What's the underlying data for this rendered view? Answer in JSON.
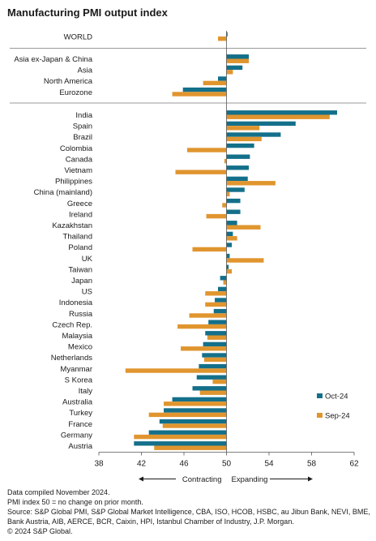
{
  "chart_data": {
    "type": "bar",
    "orientation": "horizontal",
    "title": "Manufacturing PMI output index",
    "xlim": [
      38,
      62
    ],
    "xticks": [
      38,
      42,
      46,
      50,
      54,
      58,
      62
    ],
    "baseline": 50,
    "series": [
      {
        "name": "Oct-24",
        "color": "#14708a"
      },
      {
        "name": "Sep-24",
        "color": "#e0952e"
      }
    ],
    "groups": [
      {
        "categories": [
          {
            "label": "WORLD",
            "oct": 50.1,
            "sep": 49.2
          }
        ]
      },
      {
        "categories": [
          {
            "label": "Asia ex-Japan & China",
            "oct": 52.1,
            "sep": 52.1
          },
          {
            "label": "Asia",
            "oct": 51.5,
            "sep": 50.6
          },
          {
            "label": "North America",
            "oct": 49.2,
            "sep": 47.8
          },
          {
            "label": "Eurozone",
            "oct": 45.9,
            "sep": 44.9
          }
        ]
      },
      {
        "categories": [
          {
            "label": "India",
            "oct": 60.4,
            "sep": 59.7
          },
          {
            "label": "Spain",
            "oct": 56.5,
            "sep": 53.1
          },
          {
            "label": "Brazil",
            "oct": 55.1,
            "sep": 53.3
          },
          {
            "label": "Colombia",
            "oct": 52.6,
            "sep": 46.3
          },
          {
            "label": "Canada",
            "oct": 52.2,
            "sep": 49.8
          },
          {
            "label": "Vietnam",
            "oct": 52.1,
            "sep": 45.2
          },
          {
            "label": "Philippines",
            "oct": 52.0,
            "sep": 54.6
          },
          {
            "label": "China (mainland)",
            "oct": 51.7,
            "sep": 50.3
          },
          {
            "label": "Greece",
            "oct": 51.3,
            "sep": 49.6
          },
          {
            "label": "Ireland",
            "oct": 51.3,
            "sep": 48.1
          },
          {
            "label": "Kazakhstan",
            "oct": 51.0,
            "sep": 53.2
          },
          {
            "label": "Thailand",
            "oct": 50.6,
            "sep": 51.0
          },
          {
            "label": "Poland",
            "oct": 50.5,
            "sep": 46.8
          },
          {
            "label": "UK",
            "oct": 50.3,
            "sep": 53.5
          },
          {
            "label": "Taiwan",
            "oct": 50.2,
            "sep": 50.5
          },
          {
            "label": "Japan",
            "oct": 49.4,
            "sep": 49.7
          },
          {
            "label": "US",
            "oct": 49.2,
            "sep": 48.0
          },
          {
            "label": "Indonesia",
            "oct": 48.9,
            "sep": 48.0
          },
          {
            "label": "Russia",
            "oct": 48.8,
            "sep": 46.5
          },
          {
            "label": "Czech Rep.",
            "oct": 48.3,
            "sep": 45.4
          },
          {
            "label": "Malaysia",
            "oct": 48.0,
            "sep": 48.2
          },
          {
            "label": "Mexico",
            "oct": 47.8,
            "sep": 45.7
          },
          {
            "label": "Netherlands",
            "oct": 47.7,
            "sep": 47.9
          },
          {
            "label": "Myanmar",
            "oct": 47.4,
            "sep": 40.5
          },
          {
            "label": "S Korea",
            "oct": 47.2,
            "sep": 48.7
          },
          {
            "label": "Italy",
            "oct": 46.8,
            "sep": 47.5
          },
          {
            "label": "Australia",
            "oct": 44.9,
            "sep": 44.1
          },
          {
            "label": "Turkey",
            "oct": 44.1,
            "sep": 42.7
          },
          {
            "label": "France",
            "oct": 43.7,
            "sep": 44.0
          },
          {
            "label": "Germany",
            "oct": 42.7,
            "sep": 41.3
          },
          {
            "label": "Austria",
            "oct": 41.3,
            "sep": 43.2
          }
        ]
      }
    ],
    "legend": {
      "position": "right"
    },
    "annotations": {
      "contracting": "Contracting",
      "expanding": "Expanding"
    }
  },
  "footer": {
    "notes": [
      "Data compiled November 2024.",
      "PMI index 50 = no change on prior month."
    ],
    "source": "Source: S&P Global PMI, S&P Global Market Intelligence, CBA, ISO, HCOB, HSBC, au Jibun Bank, NEVI, BME, Bank Austria, AIB, AERCE, BCR, Caixin, HPI, Istanbul Chamber of Industry, J.P. Morgan.",
    "copyright": "© 2024 S&P Global."
  }
}
